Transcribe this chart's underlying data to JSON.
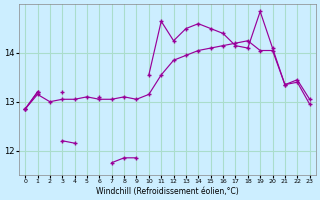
{
  "xlabel": "Windchill (Refroidissement éolien,°C)",
  "background_color": "#cceeff",
  "grid_color": "#aaddcc",
  "line_color": "#990099",
  "x": [
    0,
    1,
    2,
    3,
    4,
    5,
    6,
    7,
    8,
    9,
    10,
    11,
    12,
    13,
    14,
    15,
    16,
    17,
    18,
    19,
    20,
    21,
    22,
    23
  ],
  "line1": [
    12.85,
    13.2,
    null,
    12.2,
    12.15,
    null,
    null,
    11.75,
    11.85,
    11.85,
    null,
    null,
    null,
    null,
    null,
    null,
    null,
    null,
    null,
    null,
    null,
    null,
    null,
    null
  ],
  "line2": [
    12.85,
    13.15,
    13.0,
    13.05,
    13.05,
    13.1,
    13.05,
    13.05,
    13.1,
    13.05,
    13.15,
    13.55,
    13.85,
    13.95,
    14.05,
    14.1,
    14.15,
    14.2,
    14.25,
    14.05,
    14.05,
    13.35,
    13.4,
    12.95
  ],
  "line3": [
    12.85,
    13.2,
    null,
    13.2,
    null,
    null,
    13.1,
    null,
    null,
    null,
    13.55,
    14.65,
    14.25,
    14.5,
    14.6,
    14.5,
    14.4,
    14.15,
    14.1,
    14.85,
    14.1,
    13.35,
    13.45,
    13.05
  ],
  "ylim": [
    11.5,
    15.0
  ],
  "yticks": [
    12,
    13,
    14
  ],
  "xlim": [
    -0.5,
    23.5
  ],
  "xticks": [
    0,
    1,
    2,
    3,
    4,
    5,
    6,
    7,
    8,
    9,
    10,
    11,
    12,
    13,
    14,
    15,
    16,
    17,
    18,
    19,
    20,
    21,
    22,
    23
  ]
}
